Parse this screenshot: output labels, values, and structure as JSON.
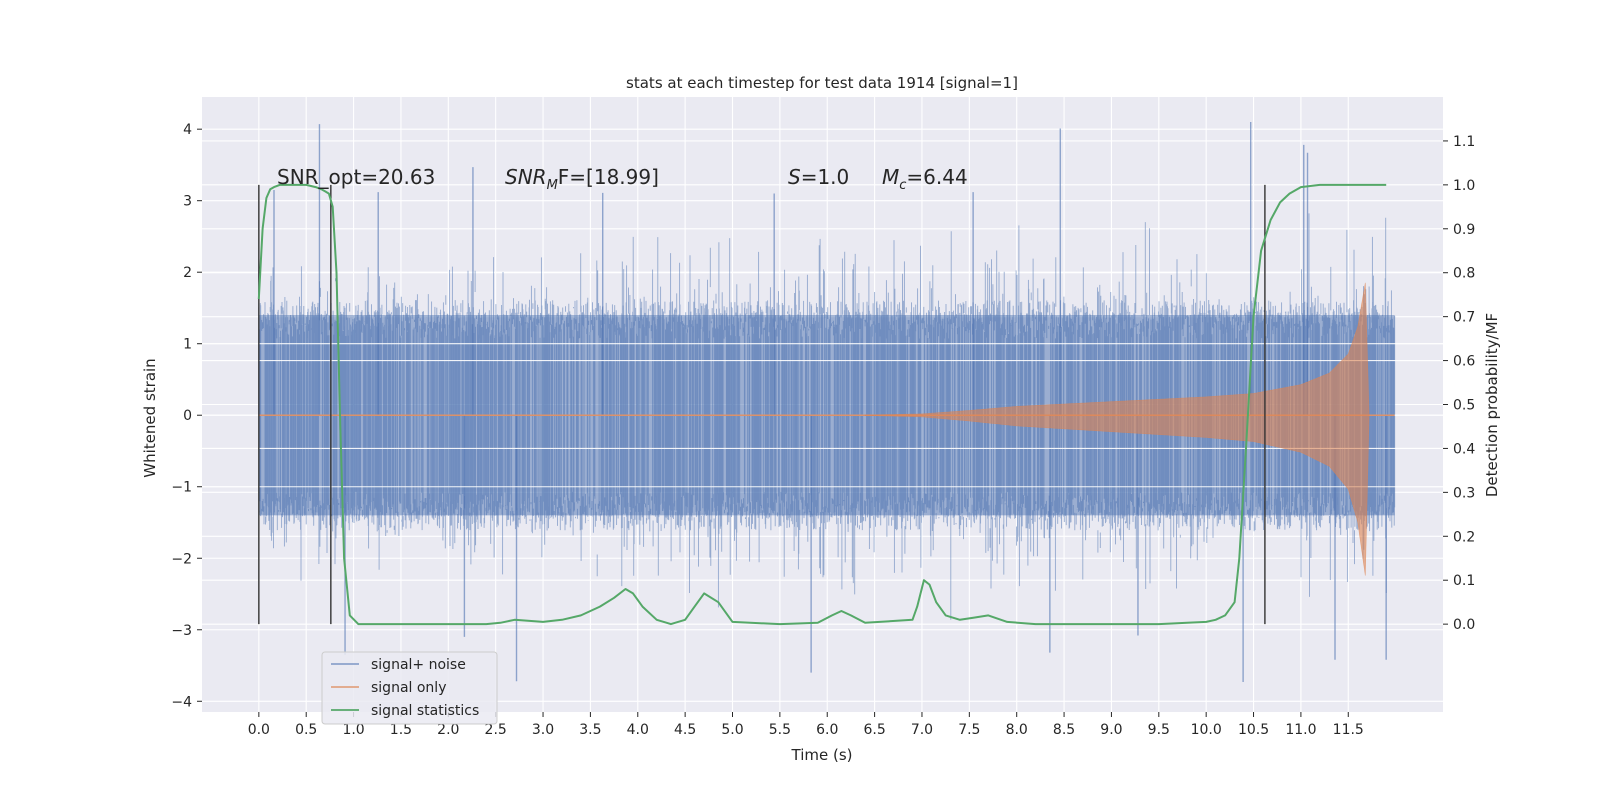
{
  "chart_data": {
    "type": "line",
    "title": "stats at each timestep for test data 1914 [signal=1]",
    "xlabel": "Time (s)",
    "ylabel": "Whitened strain",
    "ylabel_right": "Detection probability/MF",
    "xlim": [
      -0.6,
      12.5
    ],
    "ylim": [
      -4.15,
      4.45
    ],
    "ylim_right": [
      -0.2,
      1.2
    ],
    "x_ticks": [
      0.0,
      0.5,
      1.0,
      1.5,
      2.0,
      2.5,
      3.0,
      3.5,
      4.0,
      4.5,
      5.0,
      5.5,
      6.0,
      6.5,
      7.0,
      7.5,
      8.0,
      8.5,
      9.0,
      9.5,
      10.0,
      10.5,
      11.0,
      11.5
    ],
    "x_tick_labels": [
      "0.0",
      "0.5",
      "1.0",
      "1.5",
      "2.0",
      "2.5",
      "3.0",
      "3.5",
      "4.0",
      "4.5",
      "5.0",
      "5.5",
      "6.0",
      "6.5",
      "7.0",
      "7.5",
      "8.0",
      "8.5",
      "9.0",
      "9.5",
      "10.0",
      "10.5",
      "11.0",
      "11.5"
    ],
    "y_ticks": [
      -4,
      -3,
      -2,
      -1,
      0,
      1,
      2,
      3,
      4
    ],
    "y_tick_labels": [
      "−4",
      "−3",
      "−2",
      "−1",
      "0",
      "1",
      "2",
      "3",
      "4"
    ],
    "y_right_ticks": [
      0.0,
      0.1,
      0.2,
      0.3,
      0.4,
      0.5,
      0.6,
      0.7,
      0.8,
      0.9,
      1.0,
      1.1
    ],
    "y_right_tick_labels": [
      "0.0",
      "0.1",
      "0.2",
      "0.3",
      "0.4",
      "0.5",
      "0.6",
      "0.7",
      "0.8",
      "0.9",
      "1.0",
      "1.1"
    ],
    "grid": true,
    "legend_position": "lower-left",
    "colors": {
      "plot_bg": "#eaeaf2",
      "grid": "#ffffff",
      "noise": "#4c72b0",
      "signal": "#dd8452",
      "stats": "#55a868",
      "vline": "#333333"
    },
    "annotations": {
      "snr_opt": "SNR_opt=20.63",
      "snr_mf_label": "SNR",
      "snr_mf_sub": "M",
      "snr_mf_rest": "F=[18.99]",
      "s_label": "S",
      "s_value": "=1.0",
      "mc_label": "M",
      "mc_sub": "c",
      "mc_value": "=6.44"
    },
    "vertical_lines_x": [
      0.0,
      0.76,
      10.62
    ],
    "series": [
      {
        "name": "signal+ noise",
        "kind": "noise",
        "x_range": [
          0.0,
          11.99
        ],
        "typical_abs": 1.4,
        "peaks": [
          {
            "x": 0.64,
            "y": 4.07
          },
          {
            "x": 2.26,
            "y": 3.47
          },
          {
            "x": 8.46,
            "y": 4.01
          },
          {
            "x": 10.47,
            "y": 4.1
          },
          {
            "x": 11.03,
            "y": 3.78
          },
          {
            "x": 11.07,
            "y": 3.67
          },
          {
            "x": 0.16,
            "y": 3.15
          },
          {
            "x": 1.26,
            "y": 3.12
          },
          {
            "x": 3.63,
            "y": 3.11
          },
          {
            "x": 5.44,
            "y": 3.1
          },
          {
            "x": 7.54,
            "y": 3.12
          },
          {
            "x": 0.91,
            "y": -3.35
          },
          {
            "x": 2.72,
            "y": -3.72
          },
          {
            "x": 5.83,
            "y": -3.6
          },
          {
            "x": 8.35,
            "y": -3.32
          },
          {
            "x": 10.39,
            "y": -3.73
          },
          {
            "x": 11.36,
            "y": -3.42
          },
          {
            "x": 11.9,
            "y": -3.42
          },
          {
            "x": 2.17,
            "y": -3.1
          },
          {
            "x": 9.28,
            "y": -3.08
          }
        ]
      },
      {
        "name": "signal only",
        "kind": "chirp",
        "t_merger": 11.68,
        "t_end": 11.99,
        "envelope": [
          [
            0.0,
            0.0
          ],
          [
            6.5,
            0.005
          ],
          [
            7.0,
            0.02
          ],
          [
            7.5,
            0.07
          ],
          [
            8.0,
            0.13
          ],
          [
            9.0,
            0.2
          ],
          [
            10.0,
            0.27
          ],
          [
            10.5,
            0.32
          ],
          [
            11.0,
            0.45
          ],
          [
            11.3,
            0.62
          ],
          [
            11.5,
            0.9
          ],
          [
            11.6,
            1.3
          ],
          [
            11.68,
            1.95
          ],
          [
            11.72,
            0.0
          ]
        ]
      },
      {
        "name": "signal statistics",
        "kind": "probability",
        "x": [
          0.0,
          0.04,
          0.08,
          0.12,
          0.16,
          0.22,
          0.3,
          0.4,
          0.5,
          0.6,
          0.66,
          0.7,
          0.74,
          0.78,
          0.82,
          0.86,
          0.9,
          0.96,
          1.05,
          1.5,
          2.0,
          2.4,
          2.55,
          2.7,
          3.0,
          3.2,
          3.4,
          3.6,
          3.75,
          3.87,
          3.95,
          4.05,
          4.2,
          4.35,
          4.5,
          4.6,
          4.7,
          4.85,
          5.0,
          5.5,
          5.9,
          6.05,
          6.15,
          6.25,
          6.4,
          6.9,
          6.95,
          7.02,
          7.08,
          7.15,
          7.25,
          7.4,
          7.55,
          7.7,
          7.9,
          8.2,
          9.5,
          9.8,
          10.0,
          10.1,
          10.2,
          10.3,
          10.35,
          10.42,
          10.5,
          10.58,
          10.68,
          10.78,
          10.88,
          11.0,
          11.2,
          11.5,
          11.9
        ],
        "values": [
          0.74,
          0.9,
          0.97,
          0.99,
          0.995,
          1.0,
          1.0,
          1.0,
          1.0,
          0.995,
          0.99,
          0.985,
          0.98,
          0.95,
          0.8,
          0.45,
          0.15,
          0.02,
          0.0,
          0.0,
          0.0,
          0.0,
          0.003,
          0.01,
          0.005,
          0.01,
          0.02,
          0.04,
          0.06,
          0.08,
          0.07,
          0.04,
          0.01,
          0.0,
          0.01,
          0.04,
          0.07,
          0.05,
          0.005,
          0.0,
          0.003,
          0.02,
          0.03,
          0.02,
          0.003,
          0.01,
          0.04,
          0.1,
          0.09,
          0.05,
          0.02,
          0.01,
          0.015,
          0.02,
          0.005,
          0.0,
          0.0,
          0.003,
          0.005,
          0.01,
          0.02,
          0.05,
          0.15,
          0.4,
          0.7,
          0.85,
          0.92,
          0.96,
          0.98,
          0.995,
          1.0,
          1.0,
          1.0
        ]
      }
    ]
  }
}
